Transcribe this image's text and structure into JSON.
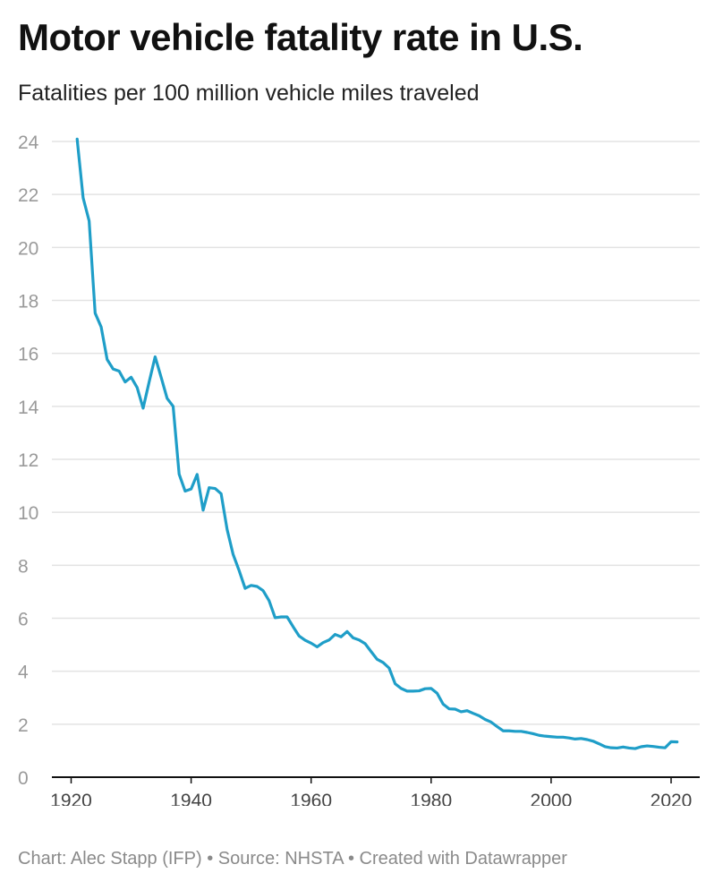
{
  "title": "Motor vehicle fatality rate in U.S.",
  "subtitle": "Fatalities per 100 million vehicle miles traveled",
  "footer": "Chart: Alec Stapp (IFP) • Source: NHSTA • Created with Datawrapper",
  "colors": {
    "line": "#1f9ec8",
    "grid": "#e3e3e3",
    "axis": "#111111",
    "tick_text": "#9a9a9a",
    "x_tick_text": "#444444"
  },
  "chart_data": {
    "type": "line",
    "title": "Motor vehicle fatality rate in U.S.",
    "subtitle": "Fatalities per 100 million vehicle miles traveled",
    "xlabel": "",
    "ylabel": "",
    "xlim": [
      1921,
      2021
    ],
    "ylim": [
      0,
      24
    ],
    "x_ticks": [
      1920,
      1940,
      1960,
      1980,
      2000,
      2020
    ],
    "y_ticks": [
      0,
      2,
      4,
      6,
      8,
      10,
      12,
      14,
      16,
      18,
      20,
      22,
      24
    ],
    "grid": true,
    "legend": "none",
    "series": [
      {
        "x": [
          1921,
          1922,
          1923,
          1924,
          1925,
          1926,
          1927,
          1928,
          1929,
          1930,
          1931,
          1932,
          1933,
          1934,
          1935,
          1936,
          1937,
          1938,
          1939,
          1940,
          1941,
          1942,
          1943,
          1944,
          1945,
          1946,
          1947,
          1948,
          1949,
          1950,
          1951,
          1952,
          1953,
          1954,
          1955,
          1956,
          1957,
          1958,
          1959,
          1960,
          1961,
          1962,
          1963,
          1964,
          1965,
          1966,
          1967,
          1968,
          1969,
          1970,
          1971,
          1972,
          1973,
          1974,
          1975,
          1976,
          1977,
          1978,
          1979,
          1980,
          1981,
          1982,
          1983,
          1984,
          1985,
          1986,
          1987,
          1988,
          1989,
          1990,
          1991,
          1992,
          1993,
          1994,
          1995,
          1996,
          1997,
          1998,
          1999,
          2000,
          2001,
          2002,
          2003,
          2004,
          2005,
          2006,
          2007,
          2008,
          2009,
          2010,
          2011,
          2012,
          2013,
          2014,
          2015,
          2016,
          2017,
          2018,
          2019,
          2020,
          2021
        ],
        "values": [
          24.09,
          21.87,
          21.0,
          17.52,
          17.0,
          15.77,
          15.41,
          15.33,
          14.92,
          15.1,
          14.71,
          13.93,
          14.92,
          15.87,
          15.1,
          14.3,
          14.0,
          11.44,
          10.8,
          10.88,
          11.43,
          10.08,
          10.93,
          10.9,
          10.7,
          9.35,
          8.41,
          7.8,
          7.13,
          7.24,
          7.2,
          7.04,
          6.66,
          6.02,
          6.05,
          6.05,
          5.68,
          5.33,
          5.17,
          5.06,
          4.92,
          5.08,
          5.18,
          5.39,
          5.3,
          5.5,
          5.26,
          5.18,
          5.04,
          4.74,
          4.45,
          4.33,
          4.12,
          3.53,
          3.35,
          3.25,
          3.25,
          3.26,
          3.34,
          3.35,
          3.17,
          2.76,
          2.58,
          2.57,
          2.47,
          2.51,
          2.41,
          2.32,
          2.18,
          2.08,
          1.91,
          1.75,
          1.75,
          1.73,
          1.73,
          1.69,
          1.64,
          1.58,
          1.55,
          1.53,
          1.51,
          1.51,
          1.48,
          1.44,
          1.46,
          1.42,
          1.36,
          1.26,
          1.15,
          1.11,
          1.1,
          1.14,
          1.1,
          1.08,
          1.15,
          1.18,
          1.16,
          1.13,
          1.11,
          1.34,
          1.33
        ]
      }
    ]
  }
}
